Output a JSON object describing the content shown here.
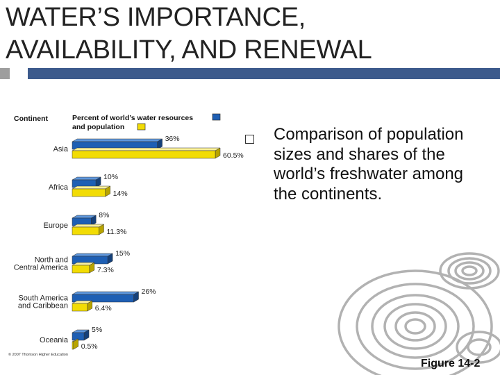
{
  "slide": {
    "title_line1": "WATER’S IMPORTANCE,",
    "title_line2": "AVAILABILITY, AND RENEWAL",
    "bullet": "Comparison of population sizes and shares of the world’s freshwater among the continents.",
    "figure_label": "Figure 14-2",
    "accent_color": "#3c5a8c",
    "bullet_icon": "square-bullet-icon",
    "decoration_icon": "water-ripple-icon"
  },
  "chart_data": {
    "type": "bar",
    "orientation": "horizontal",
    "column_header": "Continent",
    "categories": [
      "Asia",
      "Africa",
      "Europe",
      "North and Central America",
      "South America and Caribbean",
      "Oceania"
    ],
    "category_lines": [
      [
        "Asia"
      ],
      [
        "Africa"
      ],
      [
        "Europe"
      ],
      [
        "North and",
        "Central America"
      ],
      [
        "South America",
        "and Caribbean"
      ],
      [
        "Oceania"
      ]
    ],
    "series": [
      {
        "name": "Percent of world’s water resources",
        "color": "#1e5fb4",
        "values": [
          36,
          10,
          8,
          15,
          26,
          5
        ],
        "labels": [
          "36%",
          "10%",
          "8%",
          "15%",
          "26%",
          "5%"
        ]
      },
      {
        "name": "and population",
        "color": "#f2dc05",
        "values": [
          60.5,
          14,
          11.3,
          7.3,
          6.4,
          0.5
        ],
        "labels": [
          "60.5%",
          "14%",
          "11.3%",
          "7.3%",
          "6.4%",
          "0.5%"
        ]
      }
    ],
    "legend_position": "top",
    "xlim": [
      0,
      60.5
    ],
    "grid": false,
    "copyright": "© 2007 Thomson Higher Education"
  }
}
